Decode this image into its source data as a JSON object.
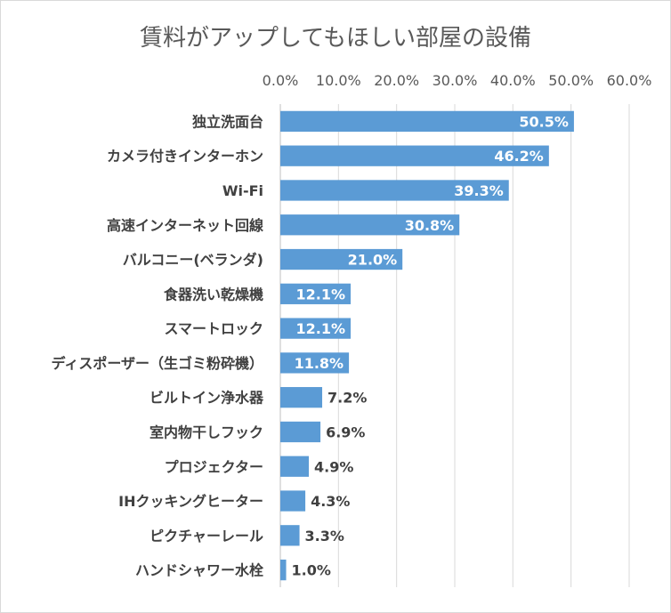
{
  "chart_data": {
    "type": "bar",
    "orientation": "horizontal",
    "title": "賃料がアップしてもほしい部屋の設備",
    "xlabel": "",
    "ylabel": "",
    "xlim": [
      0,
      60
    ],
    "tick_values": [
      0,
      10,
      20,
      30,
      40,
      50,
      60
    ],
    "tick_labels": [
      "0.0%",
      "10.0%",
      "20.0%",
      "30.0%",
      "40.0%",
      "50.0%",
      "60.0%"
    ],
    "axis_position": "top",
    "grid": true,
    "legend": "none",
    "bar_color": "#5b9bd5",
    "categories": [
      "独立洗面台",
      "カメラ付きインターホン",
      "Wi-Fi",
      "高速インターネット回線",
      "バルコニー(ベランダ)",
      "食器洗い乾燥機",
      "スマートロック",
      "ディスポーザー（生ゴミ粉砕機）",
      "ビルトイン浄水器",
      "室内物干しフック",
      "プロジェクター",
      "IHクッキングヒーター",
      "ピクチャーレール",
      "ハンドシャワー水栓"
    ],
    "values": [
      50.5,
      46.2,
      39.3,
      30.8,
      21.0,
      12.1,
      12.1,
      11.8,
      7.2,
      6.9,
      4.9,
      4.3,
      3.3,
      1.0
    ],
    "data_labels": [
      "50.5%",
      "46.2%",
      "39.3%",
      "30.8%",
      "21.0%",
      "12.1%",
      "12.1%",
      "11.8%",
      "7.2%",
      "6.9%",
      "4.9%",
      "4.3%",
      "3.3%",
      "1.0%"
    ]
  }
}
